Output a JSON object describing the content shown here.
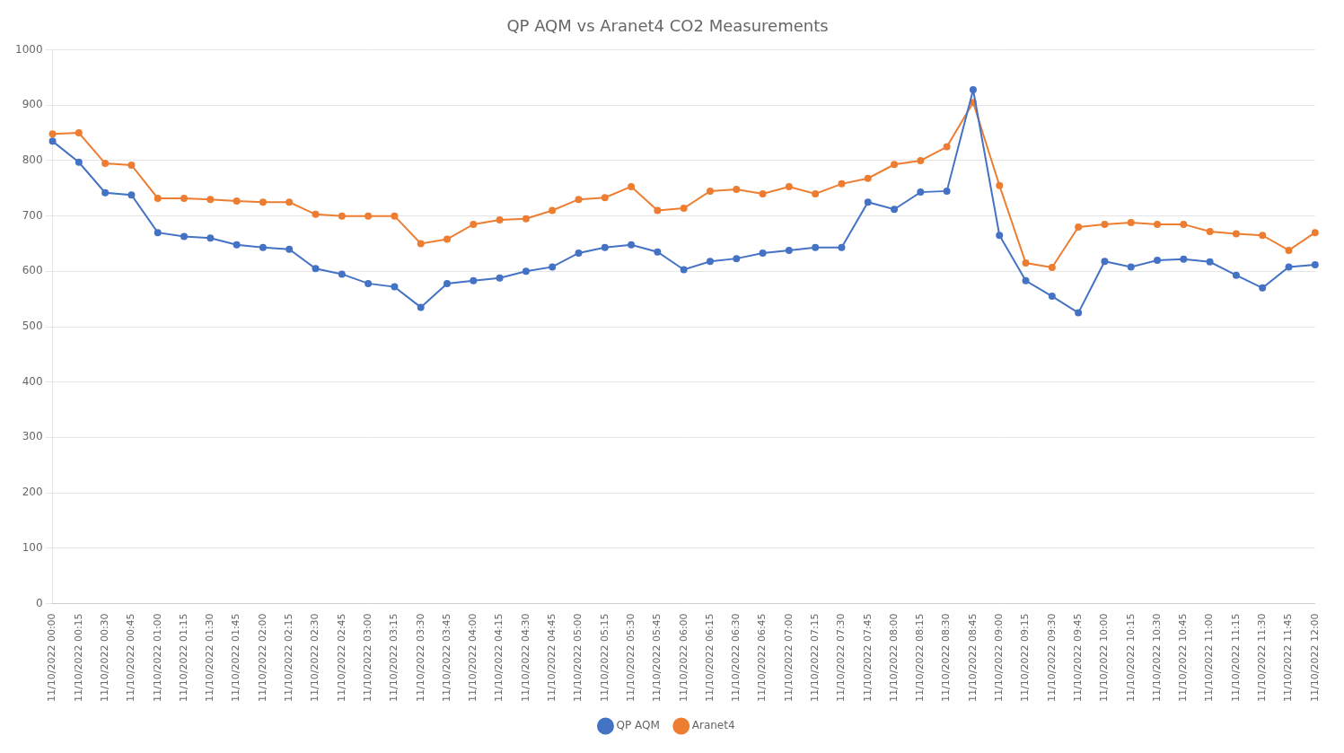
{
  "chart_data": {
    "type": "line",
    "title": "QP AQM vs Aranet4 CO2 Measurements",
    "categories": [
      "11/10/2022 00:00",
      "11/10/2022 00:15",
      "11/10/2022 00:30",
      "11/10/2022 00:45",
      "11/10/2022 01:00",
      "11/10/2022 01:15",
      "11/10/2022 01:30",
      "11/10/2022 01:45",
      "11/10/2022 02:00",
      "11/10/2022 02:15",
      "11/10/2022 02:30",
      "11/10/2022 02:45",
      "11/10/2022 03:00",
      "11/10/2022 03:15",
      "11/10/2022 03:30",
      "11/10/2022 03:45",
      "11/10/2022 04:00",
      "11/10/2022 04:15",
      "11/10/2022 04:30",
      "11/10/2022 04:45",
      "11/10/2022 05:00",
      "11/10/2022 05:15",
      "11/10/2022 05:30",
      "11/10/2022 05:45",
      "11/10/2022 06:00",
      "11/10/2022 06:15",
      "11/10/2022 06:30",
      "11/10/2022 06:45",
      "11/10/2022 07:00",
      "11/10/2022 07:15",
      "11/10/2022 07:30",
      "11/10/2022 07:45",
      "11/10/2022 08:00",
      "11/10/2022 08:15",
      "11/10/2022 08:30",
      "11/10/2022 08:45",
      "11/10/2022 09:00",
      "11/10/2022 09:15",
      "11/10/2022 09:30",
      "11/10/2022 09:45",
      "11/10/2022 10:00",
      "11/10/2022 10:15",
      "11/10/2022 10:30",
      "11/10/2022 10:45",
      "11/10/2022 11:00",
      "11/10/2022 11:15",
      "11/10/2022 11:30",
      "11/10/2022 11:45",
      "11/10/2022 12:00"
    ],
    "series": [
      {
        "name": "QP AQM",
        "color": "#4472C4",
        "marker": "circle",
        "values": [
          835,
          797,
          742,
          738,
          670,
          663,
          660,
          648,
          643,
          640,
          605,
          595,
          578,
          572,
          535,
          578,
          583,
          588,
          600,
          608,
          633,
          643,
          648,
          635,
          603,
          618,
          623,
          633,
          638,
          643,
          643,
          725,
          712,
          743,
          745,
          928,
          665,
          583,
          555,
          525,
          618,
          608,
          620,
          622,
          617,
          593,
          570,
          608,
          612
        ]
      },
      {
        "name": "Aranet4",
        "color": "#ED7D31",
        "marker": "circle",
        "values": [
          848,
          850,
          795,
          792,
          732,
          732,
          730,
          727,
          725,
          725,
          703,
          700,
          700,
          700,
          650,
          658,
          685,
          693,
          695,
          710,
          730,
          733,
          753,
          710,
          714,
          745,
          748,
          740,
          753,
          740,
          758,
          768,
          793,
          800,
          825,
          905,
          755,
          615,
          607,
          680,
          685,
          688,
          685,
          685,
          672,
          668,
          665,
          638,
          670
        ]
      }
    ],
    "ylim": [
      0,
      1000
    ],
    "yticks": [
      0,
      100,
      200,
      300,
      400,
      500,
      600,
      700,
      800,
      900,
      1000
    ],
    "grid": true,
    "legend": "bottom"
  }
}
